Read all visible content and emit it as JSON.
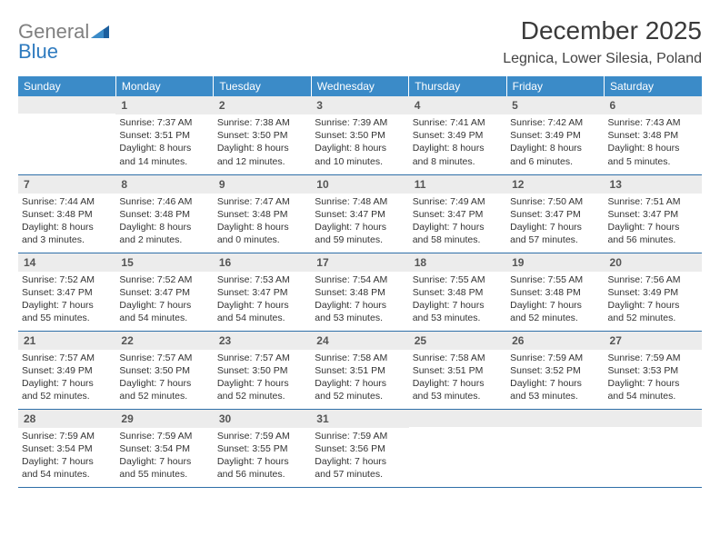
{
  "colors": {
    "header_bg": "#3b8bc8",
    "header_text": "#ffffff",
    "daynum_bg": "#ececec",
    "daynum_text": "#555555",
    "body_text": "#333333",
    "row_divider": "#2f6fa8",
    "logo_gray": "#808080",
    "logo_blue": "#2f7bbf"
  },
  "typography": {
    "title_fontsize_pt": 21,
    "location_fontsize_pt": 12,
    "header_fontsize_pt": 9,
    "daynum_fontsize_pt": 9,
    "body_fontsize_pt": 8
  },
  "logo": {
    "line1": "General",
    "line2": "Blue"
  },
  "title": "December 2025",
  "location": "Legnica, Lower Silesia, Poland",
  "weekdays": [
    "Sunday",
    "Monday",
    "Tuesday",
    "Wednesday",
    "Thursday",
    "Friday",
    "Saturday"
  ],
  "weeks": [
    [
      {
        "blank": true
      },
      {
        "n": "1",
        "sunrise": "Sunrise: 7:37 AM",
        "sunset": "Sunset: 3:51 PM",
        "day1": "Daylight: 8 hours",
        "day2": "and 14 minutes."
      },
      {
        "n": "2",
        "sunrise": "Sunrise: 7:38 AM",
        "sunset": "Sunset: 3:50 PM",
        "day1": "Daylight: 8 hours",
        "day2": "and 12 minutes."
      },
      {
        "n": "3",
        "sunrise": "Sunrise: 7:39 AM",
        "sunset": "Sunset: 3:50 PM",
        "day1": "Daylight: 8 hours",
        "day2": "and 10 minutes."
      },
      {
        "n": "4",
        "sunrise": "Sunrise: 7:41 AM",
        "sunset": "Sunset: 3:49 PM",
        "day1": "Daylight: 8 hours",
        "day2": "and 8 minutes."
      },
      {
        "n": "5",
        "sunrise": "Sunrise: 7:42 AM",
        "sunset": "Sunset: 3:49 PM",
        "day1": "Daylight: 8 hours",
        "day2": "and 6 minutes."
      },
      {
        "n": "6",
        "sunrise": "Sunrise: 7:43 AM",
        "sunset": "Sunset: 3:48 PM",
        "day1": "Daylight: 8 hours",
        "day2": "and 5 minutes."
      }
    ],
    [
      {
        "n": "7",
        "sunrise": "Sunrise: 7:44 AM",
        "sunset": "Sunset: 3:48 PM",
        "day1": "Daylight: 8 hours",
        "day2": "and 3 minutes."
      },
      {
        "n": "8",
        "sunrise": "Sunrise: 7:46 AM",
        "sunset": "Sunset: 3:48 PM",
        "day1": "Daylight: 8 hours",
        "day2": "and 2 minutes."
      },
      {
        "n": "9",
        "sunrise": "Sunrise: 7:47 AM",
        "sunset": "Sunset: 3:48 PM",
        "day1": "Daylight: 8 hours",
        "day2": "and 0 minutes."
      },
      {
        "n": "10",
        "sunrise": "Sunrise: 7:48 AM",
        "sunset": "Sunset: 3:47 PM",
        "day1": "Daylight: 7 hours",
        "day2": "and 59 minutes."
      },
      {
        "n": "11",
        "sunrise": "Sunrise: 7:49 AM",
        "sunset": "Sunset: 3:47 PM",
        "day1": "Daylight: 7 hours",
        "day2": "and 58 minutes."
      },
      {
        "n": "12",
        "sunrise": "Sunrise: 7:50 AM",
        "sunset": "Sunset: 3:47 PM",
        "day1": "Daylight: 7 hours",
        "day2": "and 57 minutes."
      },
      {
        "n": "13",
        "sunrise": "Sunrise: 7:51 AM",
        "sunset": "Sunset: 3:47 PM",
        "day1": "Daylight: 7 hours",
        "day2": "and 56 minutes."
      }
    ],
    [
      {
        "n": "14",
        "sunrise": "Sunrise: 7:52 AM",
        "sunset": "Sunset: 3:47 PM",
        "day1": "Daylight: 7 hours",
        "day2": "and 55 minutes."
      },
      {
        "n": "15",
        "sunrise": "Sunrise: 7:52 AM",
        "sunset": "Sunset: 3:47 PM",
        "day1": "Daylight: 7 hours",
        "day2": "and 54 minutes."
      },
      {
        "n": "16",
        "sunrise": "Sunrise: 7:53 AM",
        "sunset": "Sunset: 3:47 PM",
        "day1": "Daylight: 7 hours",
        "day2": "and 54 minutes."
      },
      {
        "n": "17",
        "sunrise": "Sunrise: 7:54 AM",
        "sunset": "Sunset: 3:48 PM",
        "day1": "Daylight: 7 hours",
        "day2": "and 53 minutes."
      },
      {
        "n": "18",
        "sunrise": "Sunrise: 7:55 AM",
        "sunset": "Sunset: 3:48 PM",
        "day1": "Daylight: 7 hours",
        "day2": "and 53 minutes."
      },
      {
        "n": "19",
        "sunrise": "Sunrise: 7:55 AM",
        "sunset": "Sunset: 3:48 PM",
        "day1": "Daylight: 7 hours",
        "day2": "and 52 minutes."
      },
      {
        "n": "20",
        "sunrise": "Sunrise: 7:56 AM",
        "sunset": "Sunset: 3:49 PM",
        "day1": "Daylight: 7 hours",
        "day2": "and 52 minutes."
      }
    ],
    [
      {
        "n": "21",
        "sunrise": "Sunrise: 7:57 AM",
        "sunset": "Sunset: 3:49 PM",
        "day1": "Daylight: 7 hours",
        "day2": "and 52 minutes."
      },
      {
        "n": "22",
        "sunrise": "Sunrise: 7:57 AM",
        "sunset": "Sunset: 3:50 PM",
        "day1": "Daylight: 7 hours",
        "day2": "and 52 minutes."
      },
      {
        "n": "23",
        "sunrise": "Sunrise: 7:57 AM",
        "sunset": "Sunset: 3:50 PM",
        "day1": "Daylight: 7 hours",
        "day2": "and 52 minutes."
      },
      {
        "n": "24",
        "sunrise": "Sunrise: 7:58 AM",
        "sunset": "Sunset: 3:51 PM",
        "day1": "Daylight: 7 hours",
        "day2": "and 52 minutes."
      },
      {
        "n": "25",
        "sunrise": "Sunrise: 7:58 AM",
        "sunset": "Sunset: 3:51 PM",
        "day1": "Daylight: 7 hours",
        "day2": "and 53 minutes."
      },
      {
        "n": "26",
        "sunrise": "Sunrise: 7:59 AM",
        "sunset": "Sunset: 3:52 PM",
        "day1": "Daylight: 7 hours",
        "day2": "and 53 minutes."
      },
      {
        "n": "27",
        "sunrise": "Sunrise: 7:59 AM",
        "sunset": "Sunset: 3:53 PM",
        "day1": "Daylight: 7 hours",
        "day2": "and 54 minutes."
      }
    ],
    [
      {
        "n": "28",
        "sunrise": "Sunrise: 7:59 AM",
        "sunset": "Sunset: 3:54 PM",
        "day1": "Daylight: 7 hours",
        "day2": "and 54 minutes."
      },
      {
        "n": "29",
        "sunrise": "Sunrise: 7:59 AM",
        "sunset": "Sunset: 3:54 PM",
        "day1": "Daylight: 7 hours",
        "day2": "and 55 minutes."
      },
      {
        "n": "30",
        "sunrise": "Sunrise: 7:59 AM",
        "sunset": "Sunset: 3:55 PM",
        "day1": "Daylight: 7 hours",
        "day2": "and 56 minutes."
      },
      {
        "n": "31",
        "sunrise": "Sunrise: 7:59 AM",
        "sunset": "Sunset: 3:56 PM",
        "day1": "Daylight: 7 hours",
        "day2": "and 57 minutes."
      },
      {
        "blank": true
      },
      {
        "blank": true
      },
      {
        "blank": true
      }
    ]
  ]
}
